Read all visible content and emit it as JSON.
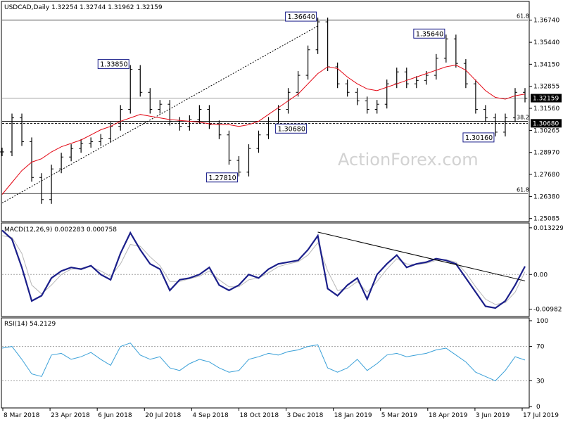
{
  "chart_data": [
    {
      "type": "candlestick",
      "title": "USDCAD,Daily  1.32254 1.32744 1.31962 1.32159",
      "ylim": [
        1.2495,
        1.378
      ],
      "y_ticks": [
        "1.36740",
        "1.35440",
        "1.34150",
        "1.32855",
        "1.31560",
        "1.30265",
        "1.28970",
        "1.27680",
        "1.26380",
        "1.25085"
      ],
      "x_ticks": [
        "8 Mar 2018",
        "23 Apr 2018",
        "6 Jun 2018",
        "20 Jul 2018",
        "4 Sep 2018",
        "18 Oct 2018",
        "3 Dec 2018",
        "18 Jan 2019",
        "5 Mar 2019",
        "18 Apr 2019",
        "3 Jun 2019",
        "17 Jul 2019"
      ],
      "series": [
        {
          "name": "USDCAD",
          "kind": "price",
          "values": [
            1.29,
            1.31,
            1.296,
            1.275,
            1.262,
            1.28,
            1.287,
            1.292,
            1.295,
            1.296,
            1.298,
            1.305,
            1.315,
            1.3385,
            1.325,
            1.315,
            1.318,
            1.308,
            1.305,
            1.309,
            1.315,
            1.306,
            1.3,
            1.285,
            1.2781,
            1.292,
            1.3,
            1.308,
            1.315,
            1.325,
            1.335,
            1.35,
            1.3664,
            1.34,
            1.33,
            1.325,
            1.32,
            1.315,
            1.318,
            1.33,
            1.337,
            1.33,
            1.332,
            1.335,
            1.345,
            1.3564,
            1.342,
            1.33,
            1.315,
            1.31,
            1.3016,
            1.31,
            1.325,
            1.3216
          ]
        },
        {
          "name": "moving-average",
          "kind": "ma",
          "values": [
            1.265,
            1.272,
            1.279,
            1.284,
            1.286,
            1.29,
            1.293,
            1.295,
            1.297,
            1.3,
            1.303,
            1.305,
            1.308,
            1.31,
            1.312,
            1.311,
            1.31,
            1.309,
            1.3085,
            1.308,
            1.3075,
            1.3065,
            1.306,
            1.306,
            1.305,
            1.306,
            1.308,
            1.312,
            1.316,
            1.32,
            1.324,
            1.33,
            1.336,
            1.34,
            1.339,
            1.334,
            1.33,
            1.327,
            1.326,
            1.328,
            1.33,
            1.332,
            1.334,
            1.336,
            1.338,
            1.34,
            1.341,
            1.338,
            1.332,
            1.326,
            1.322,
            1.321,
            1.323,
            1.324
          ]
        }
      ],
      "callouts": [
        {
          "label": "1.36640",
          "value": 1.3664,
          "index": 32
        },
        {
          "label": "1.33850",
          "value": 1.3385,
          "index": 13
        },
        {
          "label": "1.35640",
          "value": 1.3564,
          "index": 45
        },
        {
          "label": "1.30680",
          "value": 1.3068,
          "index": 31
        },
        {
          "label": "1.27810",
          "value": 1.2781,
          "index": 24
        },
        {
          "label": "1.30160",
          "value": 1.3016,
          "index": 50
        }
      ],
      "fib_levels": [
        {
          "label": "61.8",
          "value": 1.3674
        },
        {
          "label": "38.2",
          "value": 1.308
        },
        {
          "label": "61.8",
          "value": 1.2655
        }
      ],
      "h_lines": [
        {
          "label": "1.32159",
          "value": 1.32159,
          "style": "solid-gray"
        },
        {
          "label": "1.30680",
          "value": 1.3068,
          "style": "dashed"
        }
      ],
      "trendlines": [
        {
          "from": {
            "index": 0,
            "value": 1.26
          },
          "to": {
            "index": 32,
            "value": 1.364
          },
          "style": "dotted"
        }
      ],
      "last_price_tag": "1.32159",
      "level_tag": "1.30680",
      "watermark": "ActionForex.com"
    },
    {
      "type": "line",
      "title": "MACD(12,26,9) 0.002283 0.000758",
      "ylim": [
        -0.0115,
        0.014
      ],
      "y_ticks": [
        "0.013229",
        "0.00",
        "-0.00982"
      ],
      "series": [
        {
          "name": "MACD",
          "values": [
            0.0125,
            0.01,
            0.002,
            -0.0075,
            -0.006,
            -0.001,
            0.001,
            0.002,
            0.0015,
            0.0025,
            0.0,
            -0.0015,
            0.006,
            0.0118,
            0.007,
            0.003,
            0.0015,
            -0.0045,
            -0.0015,
            -0.001,
            0.0,
            0.002,
            -0.003,
            -0.0045,
            -0.003,
            0.0,
            -0.001,
            0.0015,
            0.003,
            0.0035,
            0.004,
            0.007,
            0.011,
            -0.004,
            -0.006,
            -0.003,
            -0.001,
            -0.007,
            0.0,
            0.003,
            0.0055,
            0.002,
            0.003,
            0.0035,
            0.0045,
            0.004,
            0.003,
            -0.001,
            -0.005,
            -0.009,
            -0.0095,
            -0.0075,
            -0.003,
            0.0023
          ]
        },
        {
          "name": "Signal",
          "values": [
            0.011,
            0.0105,
            0.006,
            -0.003,
            -0.0055,
            -0.003,
            0.0,
            0.0015,
            0.0018,
            0.0022,
            0.001,
            -0.0005,
            0.003,
            0.0085,
            0.008,
            0.005,
            0.0025,
            -0.002,
            -0.002,
            -0.0012,
            -0.0005,
            0.001,
            -0.0015,
            -0.0035,
            -0.0035,
            -0.0015,
            -0.001,
            0.0005,
            0.0022,
            0.003,
            0.0036,
            0.0055,
            0.009,
            0.001,
            -0.0045,
            -0.004,
            -0.002,
            -0.005,
            -0.002,
            0.0015,
            0.0045,
            0.003,
            0.0028,
            0.0032,
            0.004,
            0.0042,
            0.0035,
            0.0005,
            -0.0035,
            -0.007,
            -0.0085,
            -0.008,
            -0.005,
            0.0008
          ]
        }
      ],
      "trendlines": [
        {
          "from": {
            "index": 32,
            "value": 0.012
          },
          "to": {
            "index": 53,
            "value": -0.0018
          },
          "style": "solid"
        }
      ],
      "zero_line": true
    },
    {
      "type": "line",
      "title": "RSI(14) 54.2129",
      "ylim": [
        0,
        100
      ],
      "y_ticks": [
        "100",
        "70",
        "30",
        "0"
      ],
      "levels": [
        70,
        30
      ],
      "series": [
        {
          "name": "RSI",
          "values": [
            68,
            70,
            55,
            38,
            35,
            60,
            62,
            55,
            58,
            63,
            55,
            48,
            70,
            74,
            60,
            55,
            58,
            45,
            42,
            50,
            55,
            52,
            45,
            40,
            42,
            55,
            58,
            62,
            60,
            64,
            66,
            70,
            72,
            45,
            40,
            45,
            55,
            42,
            50,
            60,
            62,
            58,
            60,
            62,
            66,
            68,
            60,
            52,
            40,
            35,
            30,
            42,
            58,
            54.2129
          ]
        }
      ]
    }
  ],
  "axes": {
    "right_tick_labels_price": [
      "1.36740",
      "1.35440",
      "1.34150",
      "1.32855",
      "1.31560",
      "1.30265",
      "1.28970",
      "1.27680",
      "1.26380",
      "1.25085"
    ]
  },
  "labels": {
    "price_title": "USDCAD,Daily  1.32254 1.32744 1.31962 1.32159",
    "macd_title": "MACD(12,26,9) 0.002283 0.000758",
    "rsi_title": "RSI(14) 54.2129",
    "watermark": "ActionForex.com"
  },
  "colors": {
    "price": "#000000",
    "ma": "#e30613",
    "macd": "#1b1f8a",
    "signal": "#b8b8b8",
    "rsi": "#3aa0d8",
    "callout_border": "#1b1f8a",
    "watermark": "#d2d2d2"
  }
}
